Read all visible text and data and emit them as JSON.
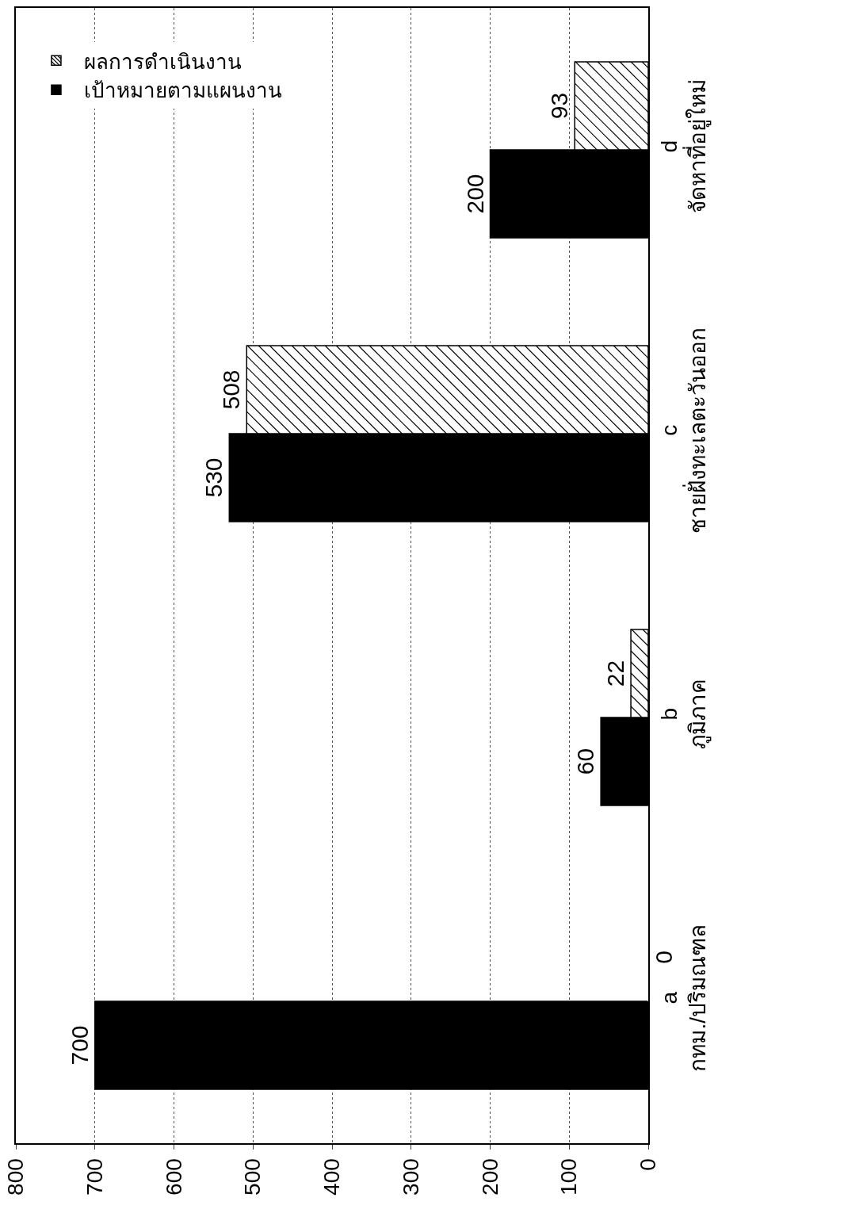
{
  "chart_data": {
    "type": "bar",
    "orientation": "horizontal",
    "categories": [
      "d\nจัดหาที่อยู่ใหม่",
      "c\nชายฝั่งทะเลตะวันออก",
      "b\nภูมิภาค",
      "a\nกทม./ปริมณฑล"
    ],
    "series": [
      {
        "name": "ผลการดำเนินงาน",
        "color": "#ffffff",
        "values": [
          93,
          508,
          22,
          0
        ]
      },
      {
        "name": "เป้าหมายตามแผนงาน",
        "color": "#000000",
        "values": [
          200,
          530,
          60,
          700
        ]
      }
    ],
    "xlim": [
      800,
      0
    ],
    "xticks": [
      0,
      100,
      200,
      300,
      400,
      500,
      600,
      700,
      800
    ],
    "grid": "x",
    "legend": "top left",
    "data_labels": true
  }
}
